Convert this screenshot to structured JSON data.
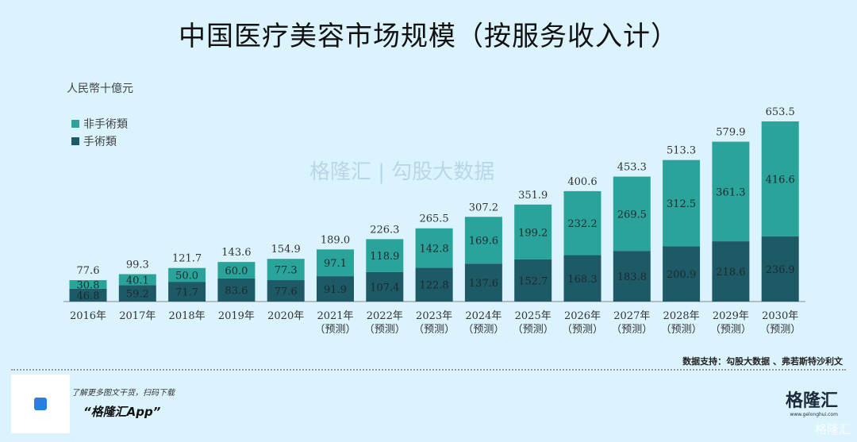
{
  "chart_data": {
    "type": "bar",
    "stacked": true,
    "title": "中国医疗美容市场规模（按服务收入计）",
    "ylabel": "人民幣十億元",
    "categories": [
      "2016年",
      "2017年",
      "2018年",
      "2019年",
      "2020年",
      "2021年",
      "2022年",
      "2023年",
      "2024年",
      "2025年",
      "2026年",
      "2027年",
      "2028年",
      "2029年",
      "2030年"
    ],
    "forecast_flags": [
      false,
      false,
      false,
      false,
      false,
      true,
      true,
      true,
      true,
      true,
      true,
      true,
      true,
      true,
      true
    ],
    "forecast_label": "（预测）",
    "series": [
      {
        "name": "手術類",
        "color": "#1d5a66",
        "values": [
          46.8,
          59.2,
          71.7,
          83.6,
          77.6,
          91.9,
          107.4,
          122.8,
          137.6,
          152.7,
          168.3,
          183.8,
          200.9,
          218.6,
          236.9
        ]
      },
      {
        "name": "非手術類",
        "color": "#2aa39a",
        "values": [
          30.8,
          40.1,
          50.0,
          60.0,
          77.3,
          97.1,
          118.9,
          142.8,
          169.6,
          199.2,
          232.2,
          269.5,
          312.5,
          361.3,
          416.6
        ]
      }
    ],
    "totals": [
      77.6,
      99.3,
      121.7,
      143.6,
      154.9,
      189.0,
      226.3,
      265.5,
      307.2,
      351.9,
      400.6,
      453.3,
      513.3,
      579.9,
      653.5
    ],
    "ylim": [
      0,
      700
    ],
    "grid": false,
    "legend": "top-left"
  },
  "legend": {
    "non_surgical": "非手術類",
    "surgical": "手術類"
  },
  "source": "数据支持：勾股大数据 、弗若斯特沙利文",
  "footer": {
    "promo_line": "了解更多图文干货，扫码下载",
    "app_name": "“格隆汇App”",
    "brand": "格隆汇",
    "brand_url": "www.gelonghui.com",
    "watermark": "格隆汇"
  },
  "watermark": {
    "text": "格隆汇 | 勾股大数据",
    "url": "www.gelonghui.com   www.gogudata.com"
  }
}
